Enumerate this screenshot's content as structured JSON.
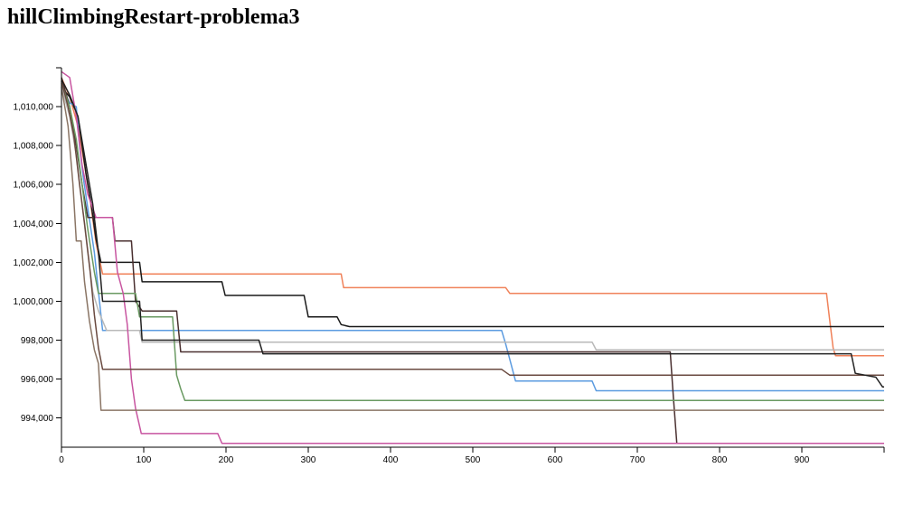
{
  "page": {
    "title": "hillClimbingRestart-problema3"
  },
  "chart_data": {
    "type": "line",
    "title": "hillClimbingRestart-problema3",
    "xlabel": "",
    "ylabel": "",
    "xlim": [
      0,
      1000
    ],
    "ylim": [
      992500,
      1012000
    ],
    "x_ticks": [
      0,
      100,
      200,
      300,
      400,
      500,
      600,
      700,
      800,
      900
    ],
    "x_tick_labels": [
      "0",
      "100",
      "200",
      "300",
      "400",
      "500",
      "600",
      "700",
      "800",
      "900"
    ],
    "y_ticks": [
      994000,
      996000,
      998000,
      1000000,
      1002000,
      1004000,
      1006000,
      1008000,
      1010000
    ],
    "y_tick_labels": [
      "994,000",
      "996,000",
      "998,000",
      "1,000,000",
      "1,002,000",
      "1,004,000",
      "1,006,000",
      "1,008,000",
      "1,010,000"
    ],
    "grid": false,
    "legend": "none",
    "series": [
      {
        "color": "#f0825a",
        "points": [
          [
            0,
            1011500
          ],
          [
            10,
            1010500
          ],
          [
            20,
            1009000
          ],
          [
            28,
            1007000
          ],
          [
            35,
            1005200
          ],
          [
            42,
            1003000
          ],
          [
            50,
            1001400
          ],
          [
            100,
            1001400
          ],
          [
            200,
            1001400
          ],
          [
            340,
            1001400
          ],
          [
            343,
            1000700
          ],
          [
            540,
            1000700
          ],
          [
            545,
            1000400
          ],
          [
            700,
            1000400
          ],
          [
            930,
            1000400
          ],
          [
            934,
            999000
          ],
          [
            938,
            997600
          ],
          [
            941,
            997200
          ],
          [
            1000,
            997200
          ]
        ]
      },
      {
        "color": "#1a1a1a",
        "points": [
          [
            0,
            1011000
          ],
          [
            10,
            1010500
          ],
          [
            20,
            1009500
          ],
          [
            25,
            1008000
          ],
          [
            30,
            1006500
          ],
          [
            36,
            1005000
          ],
          [
            42,
            1003200
          ],
          [
            48,
            1002000
          ],
          [
            95,
            1002000
          ],
          [
            98,
            1001000
          ],
          [
            195,
            1001000
          ],
          [
            199,
            1000300
          ],
          [
            295,
            1000300
          ],
          [
            300,
            999200
          ],
          [
            335,
            999200
          ],
          [
            340,
            998800
          ],
          [
            350,
            998700
          ],
          [
            1000,
            998700
          ]
        ]
      },
      {
        "color": "#5b9be0",
        "points": [
          [
            0,
            1011000
          ],
          [
            10,
            1010200
          ],
          [
            18,
            1010000
          ],
          [
            22,
            1008000
          ],
          [
            27,
            1006200
          ],
          [
            33,
            1004500
          ],
          [
            40,
            1002500
          ],
          [
            45,
            1000500
          ],
          [
            50,
            998500
          ],
          [
            535,
            998500
          ],
          [
            540,
            997800
          ],
          [
            545,
            997000
          ],
          [
            552,
            995900
          ],
          [
            645,
            995900
          ],
          [
            650,
            995400
          ],
          [
            1000,
            995400
          ]
        ]
      },
      {
        "color": "#b8b8b8",
        "points": [
          [
            0,
            1011000
          ],
          [
            10,
            1009500
          ],
          [
            18,
            1007500
          ],
          [
            25,
            1005000
          ],
          [
            32,
            1002500
          ],
          [
            38,
            1000500
          ],
          [
            45,
            999500
          ],
          [
            50,
            999000
          ],
          [
            55,
            998500
          ],
          [
            95,
            998500
          ],
          [
            98,
            997900
          ],
          [
            645,
            997900
          ],
          [
            650,
            997500
          ],
          [
            1000,
            997500
          ]
        ]
      },
      {
        "color": "#4a3030",
        "points": [
          [
            0,
            1011500
          ],
          [
            10,
            1010000
          ],
          [
            18,
            1008000
          ],
          [
            25,
            1006000
          ],
          [
            32,
            1004300
          ],
          [
            62,
            1004300
          ],
          [
            65,
            1003100
          ],
          [
            85,
            1003100
          ],
          [
            90,
            1000000
          ],
          [
            95,
            999700
          ],
          [
            98,
            999500
          ],
          [
            140,
            999500
          ],
          [
            145,
            997400
          ],
          [
            740,
            997400
          ],
          [
            744,
            995000
          ],
          [
            748,
            992700
          ],
          [
            1000,
            992700
          ]
        ]
      },
      {
        "color": "#6a9a62",
        "points": [
          [
            0,
            1011200
          ],
          [
            10,
            1010000
          ],
          [
            18,
            1008300
          ],
          [
            25,
            1006000
          ],
          [
            32,
            1003700
          ],
          [
            40,
            1001500
          ],
          [
            45,
            1000400
          ],
          [
            90,
            1000400
          ],
          [
            95,
            999200
          ],
          [
            135,
            999200
          ],
          [
            140,
            996200
          ],
          [
            145,
            995500
          ],
          [
            150,
            994900
          ],
          [
            1000,
            994900
          ]
        ]
      },
      {
        "color": "#c855a0",
        "points": [
          [
            0,
            1011800
          ],
          [
            10,
            1011500
          ],
          [
            18,
            1009500
          ],
          [
            25,
            1007000
          ],
          [
            32,
            1005500
          ],
          [
            42,
            1004300
          ],
          [
            62,
            1004300
          ],
          [
            68,
            1001500
          ],
          [
            75,
            1000400
          ],
          [
            80,
            998800
          ],
          [
            85,
            996000
          ],
          [
            90,
            994500
          ],
          [
            97,
            993200
          ],
          [
            190,
            993200
          ],
          [
            195,
            992700
          ],
          [
            1000,
            992700
          ]
        ]
      },
      {
        "color": "#8a7565",
        "points": [
          [
            0,
            1011000
          ],
          [
            8,
            1009000
          ],
          [
            14,
            1006000
          ],
          [
            18,
            1003100
          ],
          [
            24,
            1003100
          ],
          [
            28,
            1001000
          ],
          [
            34,
            999000
          ],
          [
            40,
            997500
          ],
          [
            45,
            996800
          ],
          [
            48,
            994400
          ],
          [
            1000,
            994400
          ]
        ]
      },
      {
        "color": "#6a4a40",
        "points": [
          [
            0,
            1011300
          ],
          [
            8,
            1010000
          ],
          [
            15,
            1008500
          ],
          [
            22,
            1006000
          ],
          [
            28,
            1004000
          ],
          [
            35,
            1001500
          ],
          [
            40,
            999300
          ],
          [
            45,
            997600
          ],
          [
            50,
            996500
          ],
          [
            535,
            996500
          ],
          [
            545,
            996200
          ],
          [
            1000,
            996200
          ]
        ]
      },
      {
        "color": "#222222",
        "points": [
          [
            0,
            1011400
          ],
          [
            10,
            1010600
          ],
          [
            20,
            1009500
          ],
          [
            30,
            1007000
          ],
          [
            38,
            1005000
          ],
          [
            45,
            1002500
          ],
          [
            50,
            1000000
          ],
          [
            95,
            1000000
          ],
          [
            98,
            998000
          ],
          [
            240,
            998000
          ],
          [
            245,
            997300
          ],
          [
            960,
            997300
          ],
          [
            965,
            996300
          ],
          [
            990,
            996100
          ],
          [
            998,
            995600
          ],
          [
            1000,
            995600
          ]
        ]
      }
    ]
  }
}
